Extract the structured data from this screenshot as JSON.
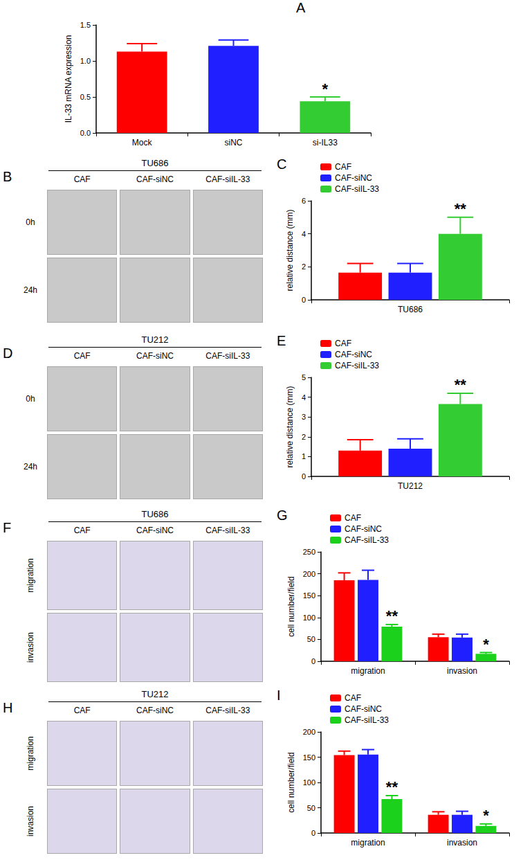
{
  "chart_data": [
    {
      "panel": "A",
      "type": "bar",
      "ylabel": "IL-33 mRNA expression",
      "categories": [
        "Mock",
        "siNC",
        "si-IL33"
      ],
      "values": [
        1.13,
        1.21,
        0.44
      ],
      "errors": [
        0.11,
        0.08,
        0.06
      ],
      "colors": [
        "#ff0000",
        "#1f1fff",
        "#33cc33"
      ],
      "annotations": [
        null,
        null,
        "*"
      ],
      "ylim": [
        0,
        1.5
      ],
      "yticks": [
        {
          "value": 0,
          "label": "0.0"
        },
        {
          "value": 0.5,
          "label": "0.5"
        },
        {
          "value": 1,
          "label": "1.0"
        },
        {
          "value": 1.5,
          "label": "1.5"
        }
      ],
      "grid": false
    },
    {
      "panel": "C",
      "type": "bar",
      "ylabel": "relative distance (mm)",
      "categories": [
        "TU686"
      ],
      "series": [
        {
          "name": "CAF",
          "color": "#ff0000",
          "values": [
            1.65
          ],
          "errors": [
            0.55
          ]
        },
        {
          "name": "CAF-siNC",
          "color": "#1f1fff",
          "values": [
            1.65
          ],
          "errors": [
            0.55
          ]
        },
        {
          "name": "CAF-siIL-33",
          "color": "#33cc33",
          "values": [
            4.0
          ],
          "errors": [
            1.0
          ],
          "annotations": [
            "**"
          ]
        }
      ],
      "ylim": [
        0,
        6
      ],
      "yticks": [
        0,
        2,
        4,
        6
      ],
      "grid": false,
      "legend": "top-left"
    },
    {
      "panel": "E",
      "type": "bar",
      "ylabel": "relative distance (mm)",
      "categories": [
        "TU212"
      ],
      "series": [
        {
          "name": "CAF",
          "color": "#ff0000",
          "values": [
            1.3
          ],
          "errors": [
            0.55
          ]
        },
        {
          "name": "CAF-siNC",
          "color": "#1f1fff",
          "values": [
            1.4
          ],
          "errors": [
            0.5
          ]
        },
        {
          "name": "CAF-siIL-33",
          "color": "#33cc33",
          "values": [
            3.65
          ],
          "errors": [
            0.55
          ],
          "annotations": [
            "**"
          ]
        }
      ],
      "ylim": [
        0,
        5
      ],
      "yticks": [
        0,
        1,
        2,
        3,
        4,
        5
      ],
      "grid": false,
      "legend": "top-left"
    },
    {
      "panel": "G",
      "type": "bar",
      "ylabel": "cell number/field",
      "categories": [
        "migration",
        "invasion"
      ],
      "series": [
        {
          "name": "CAF",
          "color": "#ff0000",
          "values": [
            185,
            55
          ],
          "errors": [
            17,
            7
          ]
        },
        {
          "name": "CAF-siNC",
          "color": "#1f1fff",
          "values": [
            186,
            54
          ],
          "errors": [
            22,
            8
          ]
        },
        {
          "name": "CAF-siIL-33",
          "color": "#1bd11b",
          "values": [
            79,
            17
          ],
          "errors": [
            5,
            3
          ],
          "annotations": [
            "**",
            "*"
          ]
        }
      ],
      "ylim": [
        0,
        250
      ],
      "yticks": [
        0,
        50,
        100,
        150,
        200,
        250
      ],
      "grid": false,
      "legend": "top-left"
    },
    {
      "panel": "I",
      "type": "bar",
      "ylabel": "cell number/field",
      "categories": [
        "migration",
        "invasion"
      ],
      "series": [
        {
          "name": "CAF",
          "color": "#ff0000",
          "values": [
            154,
            36
          ],
          "errors": [
            8,
            6
          ]
        },
        {
          "name": "CAF-siNC",
          "color": "#1f1fff",
          "values": [
            155,
            36
          ],
          "errors": [
            10,
            7
          ]
        },
        {
          "name": "CAF-siIL-33",
          "color": "#1bd11b",
          "values": [
            67,
            14
          ],
          "errors": [
            7,
            4
          ],
          "annotations": [
            "**",
            "*"
          ]
        }
      ],
      "ylim": [
        0,
        200
      ],
      "yticks": [
        0,
        50,
        100,
        150,
        200
      ],
      "grid": false,
      "legend": "top-left"
    }
  ],
  "image_panels": [
    {
      "panel": "B",
      "title": "TU686",
      "columns": [
        "CAF",
        "CAF-siNC",
        "CAF-siIL-33"
      ],
      "rows": [
        "0h",
        "24h"
      ]
    },
    {
      "panel": "D",
      "title": "TU212",
      "columns": [
        "CAF",
        "CAF-siNC",
        "CAF-siIL-33"
      ],
      "rows": [
        "0h",
        "24h"
      ]
    },
    {
      "panel": "F",
      "title": "TU686",
      "columns": [
        "CAF",
        "CAF-siNC",
        "CAF-siIL-33"
      ],
      "rows": [
        "migration",
        "invasion"
      ]
    },
    {
      "panel": "H",
      "title": "TU212",
      "columns": [
        "CAF",
        "CAF-siNC",
        "CAF-siIL-33"
      ],
      "rows": [
        "migration",
        "invasion"
      ]
    }
  ]
}
